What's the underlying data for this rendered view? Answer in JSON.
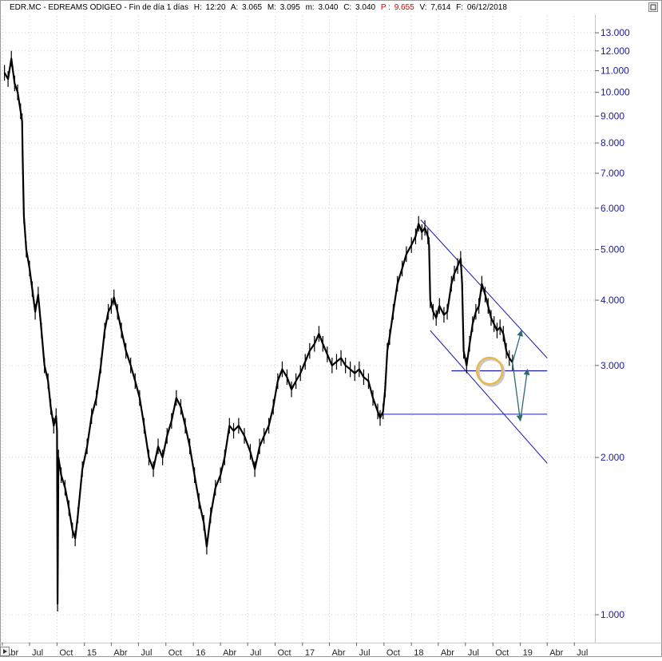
{
  "header": {
    "symbol": "EDR.MC",
    "name": "EDREAMS ODIGEO",
    "interval": "Fin de día 1 días",
    "h_label": "H:",
    "h_value": "12:20",
    "a_label": "A:",
    "a_value": "3.065",
    "m_label": "M:",
    "m_value": "3.095",
    "min_label": "m:",
    "min_value": "3.040",
    "c_label": "C:",
    "c_value": "3.040",
    "p_label": "P :",
    "p_value": "9.655",
    "v_label": "V:",
    "v_value": "7,614",
    "f_label": "F:",
    "f_value": "06/12/2018"
  },
  "colors": {
    "price": "#000000",
    "axis_text": "#1a1aa0",
    "channel_line": "#1a1ab0",
    "projection_arrow": "#2e6b73",
    "highlight_ellipse": "#e8b84a",
    "p_value": "#d00000"
  },
  "icons": {
    "top_right": "square-icon",
    "bottom_left": "play-triangle-icon"
  },
  "chart_data": {
    "type": "line",
    "yscale": "log",
    "ylim": [
      0.9,
      14.0
    ],
    "yticks": [
      1.0,
      2.0,
      3.0,
      4.0,
      5.0,
      6.0,
      7.0,
      8.0,
      9.0,
      10.0,
      11.0,
      12.0,
      13.0
    ],
    "ytick_labels": [
      "1.000",
      "2.000",
      "3.000",
      "4.000",
      "5.000",
      "6.000",
      "7.000",
      "8.000",
      "9.000",
      "10.000",
      "11.000",
      "12.000",
      "13.000"
    ],
    "xlim": [
      "2014-04-01",
      "2019-08-31"
    ],
    "xticks": [
      {
        "date": "2014-04-01",
        "label": "Abr"
      },
      {
        "date": "2014-07-01",
        "label": "Jul"
      },
      {
        "date": "2014-10-01",
        "label": "Oct"
      },
      {
        "date": "2015-01-01",
        "label": "15"
      },
      {
        "date": "2015-04-01",
        "label": "Abr"
      },
      {
        "date": "2015-07-01",
        "label": "Jul"
      },
      {
        "date": "2015-10-01",
        "label": "Oct"
      },
      {
        "date": "2016-01-01",
        "label": "16"
      },
      {
        "date": "2016-04-01",
        "label": "Abr"
      },
      {
        "date": "2016-07-01",
        "label": "Jul"
      },
      {
        "date": "2016-10-01",
        "label": "Oct"
      },
      {
        "date": "2017-01-01",
        "label": "17"
      },
      {
        "date": "2017-04-01",
        "label": "Abr"
      },
      {
        "date": "2017-07-01",
        "label": "Jul"
      },
      {
        "date": "2017-10-01",
        "label": "Oct"
      },
      {
        "date": "2018-01-01",
        "label": "18"
      },
      {
        "date": "2018-04-01",
        "label": "Abr"
      },
      {
        "date": "2018-07-01",
        "label": "Jul"
      },
      {
        "date": "2018-10-01",
        "label": "Oct"
      },
      {
        "date": "2019-01-01",
        "label": "19"
      },
      {
        "date": "2019-04-01",
        "label": "Abr"
      },
      {
        "date": "2019-07-01",
        "label": "Jul"
      }
    ],
    "grid": true,
    "series": [
      {
        "points": [
          [
            "2014-04-08",
            10.9
          ],
          [
            "2014-04-20",
            10.6
          ],
          [
            "2014-05-01",
            11.6
          ],
          [
            "2014-05-12",
            10.4
          ],
          [
            "2014-05-22",
            10.0
          ],
          [
            "2014-06-01",
            9.2
          ],
          [
            "2014-06-06",
            8.8
          ],
          [
            "2014-06-08",
            7.5
          ],
          [
            "2014-06-12",
            5.8
          ],
          [
            "2014-06-20",
            5.0
          ],
          [
            "2014-07-01",
            4.6
          ],
          [
            "2014-07-10",
            4.2
          ],
          [
            "2014-07-20",
            3.8
          ],
          [
            "2014-07-30",
            4.1
          ],
          [
            "2014-08-10",
            3.5
          ],
          [
            "2014-08-20",
            3.0
          ],
          [
            "2014-09-01",
            2.8
          ],
          [
            "2014-09-10",
            2.5
          ],
          [
            "2014-09-20",
            2.3
          ],
          [
            "2014-09-28",
            2.4
          ],
          [
            "2014-10-01",
            2.25
          ],
          [
            "2014-10-03",
            1.05
          ],
          [
            "2014-10-06",
            2.0
          ],
          [
            "2014-10-15",
            1.85
          ],
          [
            "2014-10-28",
            1.75
          ],
          [
            "2014-11-10",
            1.6
          ],
          [
            "2014-11-22",
            1.45
          ],
          [
            "2014-12-01",
            1.4
          ],
          [
            "2014-12-10",
            1.55
          ],
          [
            "2014-12-25",
            1.9
          ],
          [
            "2015-01-10",
            2.1
          ],
          [
            "2015-01-25",
            2.4
          ],
          [
            "2015-02-10",
            2.6
          ],
          [
            "2015-02-25",
            3.0
          ],
          [
            "2015-03-10",
            3.5
          ],
          [
            "2015-03-22",
            3.8
          ],
          [
            "2015-04-01",
            3.9
          ],
          [
            "2015-04-10",
            4.05
          ],
          [
            "2015-04-22",
            3.8
          ],
          [
            "2015-05-05",
            3.5
          ],
          [
            "2015-05-20",
            3.2
          ],
          [
            "2015-06-05",
            3.0
          ],
          [
            "2015-06-20",
            2.8
          ],
          [
            "2015-07-05",
            2.6
          ],
          [
            "2015-07-20",
            2.3
          ],
          [
            "2015-08-05",
            2.0
          ],
          [
            "2015-08-20",
            1.9
          ],
          [
            "2015-09-05",
            2.1
          ],
          [
            "2015-09-20",
            2.0
          ],
          [
            "2015-10-05",
            2.2
          ],
          [
            "2015-10-20",
            2.35
          ],
          [
            "2015-11-05",
            2.6
          ],
          [
            "2015-11-20",
            2.5
          ],
          [
            "2015-12-05",
            2.3
          ],
          [
            "2015-12-20",
            2.1
          ],
          [
            "2016-01-05",
            1.85
          ],
          [
            "2016-01-20",
            1.65
          ],
          [
            "2016-02-05",
            1.5
          ],
          [
            "2016-02-15",
            1.35
          ],
          [
            "2016-02-28",
            1.55
          ],
          [
            "2016-03-15",
            1.75
          ],
          [
            "2016-04-01",
            1.85
          ],
          [
            "2016-04-15",
            2.0
          ],
          [
            "2016-05-01",
            2.3
          ],
          [
            "2016-05-15",
            2.25
          ],
          [
            "2016-06-01",
            2.3
          ],
          [
            "2016-06-20",
            2.2
          ],
          [
            "2016-07-10",
            2.05
          ],
          [
            "2016-07-25",
            1.9
          ],
          [
            "2016-08-10",
            2.1
          ],
          [
            "2016-08-25",
            2.2
          ],
          [
            "2016-09-10",
            2.3
          ],
          [
            "2016-09-25",
            2.5
          ],
          [
            "2016-10-10",
            2.8
          ],
          [
            "2016-10-25",
            2.95
          ],
          [
            "2016-11-10",
            2.85
          ],
          [
            "2016-11-25",
            2.7
          ],
          [
            "2016-12-10",
            2.8
          ],
          [
            "2016-12-25",
            2.9
          ],
          [
            "2017-01-10",
            3.05
          ],
          [
            "2017-01-25",
            3.2
          ],
          [
            "2017-02-10",
            3.3
          ],
          [
            "2017-02-25",
            3.45
          ],
          [
            "2017-03-10",
            3.3
          ],
          [
            "2017-03-25",
            3.15
          ],
          [
            "2017-04-10",
            3.0
          ],
          [
            "2017-04-25",
            3.05
          ],
          [
            "2017-05-10",
            3.1
          ],
          [
            "2017-05-25",
            3.0
          ],
          [
            "2017-06-10",
            2.95
          ],
          [
            "2017-06-25",
            2.9
          ],
          [
            "2017-07-10",
            2.95
          ],
          [
            "2017-07-25",
            2.85
          ],
          [
            "2017-08-10",
            2.8
          ],
          [
            "2017-08-25",
            2.6
          ],
          [
            "2017-09-10",
            2.45
          ],
          [
            "2017-09-18",
            2.38
          ],
          [
            "2017-09-28",
            2.45
          ],
          [
            "2017-10-05",
            2.7
          ],
          [
            "2017-10-12",
            3.2
          ],
          [
            "2017-10-20",
            3.4
          ],
          [
            "2017-11-01",
            3.8
          ],
          [
            "2017-11-15",
            4.3
          ],
          [
            "2017-12-01",
            4.6
          ],
          [
            "2017-12-15",
            4.9
          ],
          [
            "2018-01-01",
            5.1
          ],
          [
            "2018-01-15",
            5.3
          ],
          [
            "2018-01-25",
            5.6
          ],
          [
            "2018-02-05",
            5.4
          ],
          [
            "2018-02-15",
            5.5
          ],
          [
            "2018-02-25",
            5.3
          ],
          [
            "2018-03-01",
            5.1
          ],
          [
            "2018-03-05",
            4.0
          ],
          [
            "2018-03-15",
            3.8
          ],
          [
            "2018-03-25",
            3.7
          ],
          [
            "2018-04-05",
            3.9
          ],
          [
            "2018-04-20",
            3.75
          ],
          [
            "2018-05-01",
            3.8
          ],
          [
            "2018-05-15",
            4.3
          ],
          [
            "2018-05-25",
            4.5
          ],
          [
            "2018-06-05",
            4.65
          ],
          [
            "2018-06-15",
            4.8
          ],
          [
            "2018-06-20",
            4.3
          ],
          [
            "2018-06-25",
            3.2
          ],
          [
            "2018-07-05",
            3.0
          ],
          [
            "2018-07-15",
            3.3
          ],
          [
            "2018-07-25",
            3.6
          ],
          [
            "2018-08-05",
            3.8
          ],
          [
            "2018-08-15",
            3.9
          ],
          [
            "2018-08-25",
            4.3
          ],
          [
            "2018-09-05",
            4.1
          ],
          [
            "2018-09-15",
            3.9
          ],
          [
            "2018-09-25",
            3.7
          ],
          [
            "2018-10-05",
            3.6
          ],
          [
            "2018-10-15",
            3.5
          ],
          [
            "2018-10-25",
            3.55
          ],
          [
            "2018-11-05",
            3.45
          ],
          [
            "2018-11-15",
            3.2
          ],
          [
            "2018-11-25",
            3.1
          ],
          [
            "2018-12-06",
            3.04
          ]
        ]
      }
    ],
    "annotations": {
      "channel_upper": [
        [
          "2018-02-01",
          5.7
        ],
        [
          "2019-04-01",
          3.1
        ]
      ],
      "channel_lower": [
        [
          "2018-03-05",
          3.5
        ],
        [
          "2019-04-01",
          1.95
        ]
      ],
      "resistance": {
        "y": 2.93,
        "from": "2018-05-15",
        "to": "2019-04-01"
      },
      "support": {
        "y": 2.42,
        "from": "2017-09-15",
        "to": "2019-04-01"
      },
      "ellipse": {
        "center": [
          "2018-09-20",
          2.93
        ],
        "width_days": 85,
        "height_ratio": 1.06
      },
      "arrows": [
        {
          "from": [
            "2018-12-06",
            3.04
          ],
          "to": [
            "2019-01-05",
            3.5
          ]
        },
        {
          "from": [
            "2018-12-06",
            3.04
          ],
          "to": [
            "2019-01-01",
            2.35
          ]
        },
        {
          "from": [
            "2019-01-01",
            2.35
          ],
          "to": [
            "2019-01-25",
            2.95
          ]
        }
      ]
    }
  }
}
